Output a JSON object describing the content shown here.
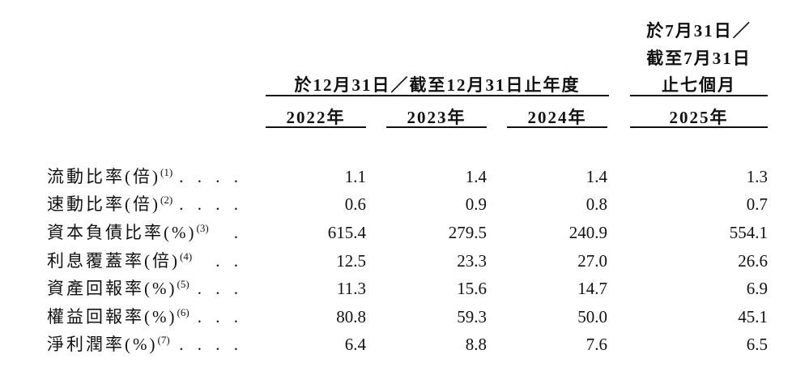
{
  "header": {
    "group_fy": "於12月31日／截至12月31日止年度",
    "group_interim": [
      "於7月31日／",
      "截至7月31日",
      "止七個月"
    ],
    "years": [
      "2022年",
      "2023年",
      "2024年",
      "2025年"
    ]
  },
  "rows": [
    {
      "label": "流動比率(倍)",
      "note": "(1)",
      "leader": ". . . .",
      "values": [
        "1.1",
        "1.4",
        "1.4",
        "1.3"
      ]
    },
    {
      "label": "速動比率(倍)",
      "note": "(2)",
      "leader": ". . . .",
      "values": [
        "0.6",
        "0.9",
        "0.8",
        "0.7"
      ]
    },
    {
      "label": "資本負債比率(%)",
      "note": "(3)",
      "leader": ".",
      "values": [
        "615.4",
        "279.5",
        "240.9",
        "554.1"
      ]
    },
    {
      "label": "利息覆蓋率(倍)",
      "note": "(4)",
      "leader": ". .",
      "values": [
        "12.5",
        "23.3",
        "27.0",
        "26.6"
      ]
    },
    {
      "label": "資產回報率(%)",
      "note": "(5)",
      "leader": ". . .",
      "values": [
        "11.3",
        "15.6",
        "14.7",
        "6.9"
      ]
    },
    {
      "label": "權益回報率(%)",
      "note": "(6)",
      "leader": ". . .",
      "values": [
        "80.8",
        "59.3",
        "50.0",
        "45.1"
      ]
    },
    {
      "label": "淨利潤率(%)",
      "note": "(7)",
      "leader": ". . . .",
      "values": [
        "6.4",
        "8.8",
        "7.6",
        "6.5"
      ]
    }
  ]
}
